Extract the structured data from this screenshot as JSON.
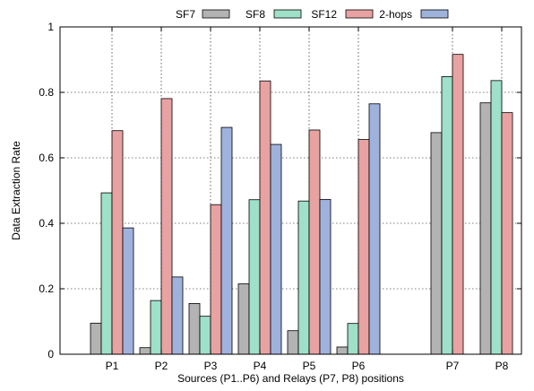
{
  "chart_data": {
    "type": "bar",
    "title": "",
    "xlabel": "Sources (P1..P6) and Relays (P7, P8) positions",
    "ylabel": "Data Extraction Rate",
    "ylim": [
      0,
      1
    ],
    "yticks": [
      "0",
      "0.2",
      "0.4",
      "0.6",
      "0.8",
      "1"
    ],
    "ytick_values": [
      0,
      0.2,
      0.4,
      0.6,
      0.8,
      1
    ],
    "grid": true,
    "legend_position": "top",
    "categories": [
      "P1",
      "P2",
      "P3",
      "P4",
      "P5",
      "P6",
      "P7",
      "P8"
    ],
    "series": [
      {
        "name": "SF7",
        "color": "#b3b3b3",
        "values": [
          0.095,
          0.02,
          0.155,
          0.215,
          0.072,
          0.022,
          0.677,
          0.768
        ]
      },
      {
        "name": "SF8",
        "color": "#9ee0c8",
        "values": [
          0.493,
          0.164,
          0.116,
          0.472,
          0.468,
          0.094,
          0.848,
          0.836
        ]
      },
      {
        "name": "SF12",
        "color": "#e8a2a2",
        "values": [
          0.683,
          0.781,
          0.457,
          0.835,
          0.685,
          0.656,
          0.916,
          0.738
        ]
      },
      {
        "name": "2-hops",
        "color": "#9fb2dc",
        "values": [
          0.386,
          0.236,
          0.693,
          0.641,
          0.473,
          0.765,
          null,
          null
        ]
      }
    ]
  }
}
